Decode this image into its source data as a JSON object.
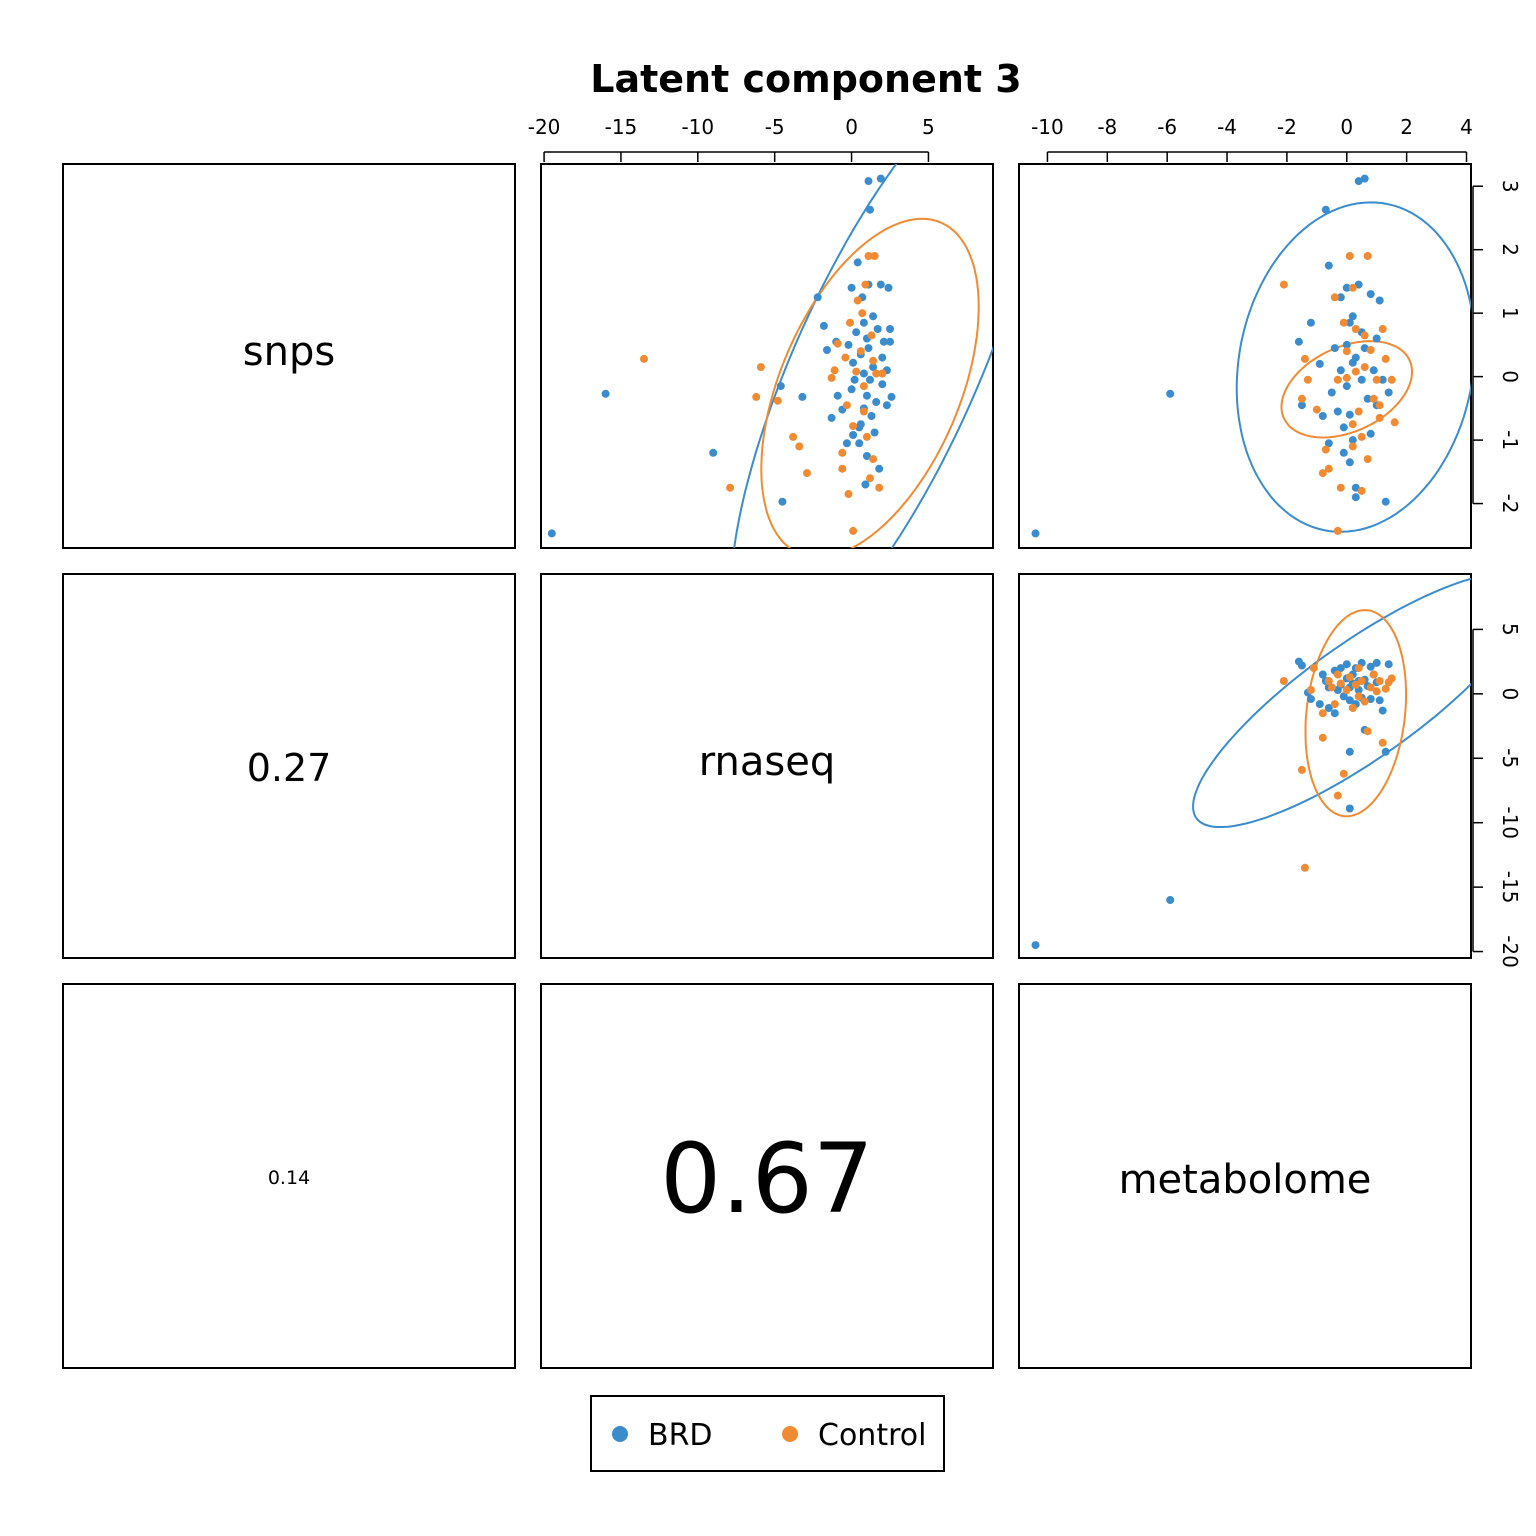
{
  "chart_data": {
    "type": "scatter",
    "title": "Latent component 3",
    "variables": [
      "snps",
      "rnaseq",
      "metabolome"
    ],
    "colors": {
      "BRD": "#3a8ccd",
      "Control": "#f08b33"
    },
    "legend": {
      "entries": [
        "BRD",
        "Control"
      ],
      "placement": "bottom-center"
    },
    "correlations": [
      {
        "row": 1,
        "col": 0,
        "pair": [
          "snps",
          "rnaseq"
        ],
        "value": "0.27"
      },
      {
        "row": 2,
        "col": 0,
        "pair": [
          "snps",
          "metabolome"
        ],
        "value": "0.14"
      },
      {
        "row": 2,
        "col": 1,
        "pair": [
          "rnaseq",
          "metabolome"
        ],
        "value": "0.67"
      }
    ],
    "axes": {
      "top_rnaseq": {
        "ticks": [
          -20,
          -15,
          -10,
          -5,
          0,
          5
        ],
        "range": [
          -20.2,
          9.2
        ]
      },
      "top_metabolome": {
        "ticks": [
          -10,
          -8,
          -6,
          -4,
          -2,
          0,
          2,
          4
        ],
        "range": [
          -10.95,
          4.15
        ]
      },
      "right_snps": {
        "ticks": [
          -2,
          -1,
          0,
          1,
          2,
          3
        ],
        "range": [
          -2.7,
          3.35
        ]
      },
      "right_rnaseq": {
        "ticks": [
          -20,
          -15,
          -10,
          -5,
          0,
          5
        ],
        "range": [
          -20.5,
          9.3
        ]
      }
    },
    "panels": [
      {
        "row": 0,
        "col": 1,
        "x_var": "rnaseq",
        "y_var": "snps",
        "BRD": [
          [
            -19.5,
            -2.47
          ],
          [
            -16,
            -0.27
          ],
          [
            -9,
            -1.2
          ],
          [
            -4.6,
            -0.15
          ],
          [
            -4.5,
            -1.97
          ],
          [
            -3.2,
            -0.32
          ],
          [
            -2.2,
            1.25
          ],
          [
            -1.8,
            0.8
          ],
          [
            -1.6,
            0.42
          ],
          [
            -1.3,
            -0.65
          ],
          [
            -1,
            0.55
          ],
          [
            -0.9,
            -0.3
          ],
          [
            -0.6,
            -0.52
          ],
          [
            -0.3,
            -1.05
          ],
          [
            -0.2,
            0.5
          ],
          [
            0,
            1.4
          ],
          [
            0,
            -0.2
          ],
          [
            0.1,
            0.22
          ],
          [
            0.1,
            -0.92
          ],
          [
            0.2,
            -0.05
          ],
          [
            0.3,
            0.7
          ],
          [
            0.4,
            1.8
          ],
          [
            0.5,
            -0.8
          ],
          [
            0.5,
            -1.05
          ],
          [
            0.6,
            0.35
          ],
          [
            0.6,
            -0.75
          ],
          [
            0.7,
            1.25
          ],
          [
            0.8,
            0.85
          ],
          [
            0.8,
            0.05
          ],
          [
            0.8,
            -0.5
          ],
          [
            0.9,
            -1.7
          ],
          [
            1,
            0.6
          ],
          [
            1,
            -0.3
          ],
          [
            1,
            -1.25
          ],
          [
            1.1,
            3.08
          ],
          [
            1.1,
            1.45
          ],
          [
            1.1,
            0.45
          ],
          [
            1.2,
            2.63
          ],
          [
            1.2,
            -0.05
          ],
          [
            1.3,
            -0.62
          ],
          [
            1.4,
            0.95
          ],
          [
            1.4,
            0.15
          ],
          [
            1.5,
            -0.88
          ],
          [
            1.6,
            -0.4
          ],
          [
            1.7,
            0.75
          ],
          [
            1.8,
            -1.45
          ],
          [
            1.9,
            3.12
          ],
          [
            1.9,
            1.45
          ],
          [
            2,
            0.3
          ],
          [
            2,
            -0.12
          ],
          [
            2.1,
            0.55
          ],
          [
            2.3,
            0.1
          ],
          [
            2.3,
            -0.45
          ],
          [
            2.4,
            1.4
          ],
          [
            2.5,
            0.75
          ],
          [
            2.5,
            0.55
          ],
          [
            2.6,
            -0.32
          ]
        ],
        "Control": [
          [
            -13.5,
            0.28
          ],
          [
            -7.9,
            -1.75
          ],
          [
            -6.2,
            -0.32
          ],
          [
            -5.9,
            0.15
          ],
          [
            -4.8,
            -0.38
          ],
          [
            -3.8,
            -0.95
          ],
          [
            -3.4,
            -1.1
          ],
          [
            -2.9,
            -1.52
          ],
          [
            -1.3,
            -0.02
          ],
          [
            -1.1,
            0.1
          ],
          [
            -0.9,
            0.52
          ],
          [
            -0.6,
            -1.2
          ],
          [
            -0.6,
            -1.45
          ],
          [
            -0.4,
            0.3
          ],
          [
            -0.3,
            -0.45
          ],
          [
            -0.2,
            -1.85
          ],
          [
            -0.1,
            0.85
          ],
          [
            0.1,
            -0.78
          ],
          [
            0.1,
            -2.43
          ],
          [
            0.3,
            0.08
          ],
          [
            0.4,
            1.2
          ],
          [
            0.6,
            0.4
          ],
          [
            0.7,
            1.0
          ],
          [
            0.8,
            -0.15
          ],
          [
            0.8,
            -0.55
          ],
          [
            0.9,
            1.45
          ],
          [
            1,
            -0.95
          ],
          [
            1.1,
            1.9
          ],
          [
            1.2,
            -1.6
          ],
          [
            1.3,
            0.65
          ],
          [
            1.4,
            0.25
          ],
          [
            1.4,
            -1.3
          ],
          [
            1.5,
            1.9
          ],
          [
            1.6,
            0.05
          ],
          [
            1.8,
            -1.75
          ],
          [
            2,
            0.05
          ]
        ],
        "ellipses": {
          "BRD": {
            "center": [
              2.2,
              0.13
            ],
            "dir": [
              0.935,
              0.355
            ],
            "semi_axes": [
              10.7,
              2.8
            ]
          },
          "Control": {
            "center": [
              1.2,
              -0.18
            ],
            "dir": [
              0.98,
              0.198
            ],
            "semi_axes": [
              7.2,
              2.3
            ]
          }
        }
      },
      {
        "row": 0,
        "col": 2,
        "x_var": "metabolome",
        "y_var": "snps",
        "BRD": [
          [
            -10.4,
            -2.47
          ],
          [
            -5.9,
            -0.27
          ],
          [
            -1.6,
            0.55
          ],
          [
            -1.5,
            -0.45
          ],
          [
            -1.2,
            0.85
          ],
          [
            -0.9,
            0.2
          ],
          [
            -0.8,
            -0.62
          ],
          [
            -0.7,
            2.63
          ],
          [
            -0.6,
            1.75
          ],
          [
            -0.6,
            -1.05
          ],
          [
            -0.5,
            -0.25
          ],
          [
            -0.4,
            0.45
          ],
          [
            -0.3,
            -0.55
          ],
          [
            -0.2,
            1.25
          ],
          [
            -0.2,
            0.1
          ],
          [
            -0.1,
            -0.8
          ],
          [
            -0.1,
            -1.2
          ],
          [
            0,
            1.4
          ],
          [
            0,
            0.5
          ],
          [
            0,
            -0.15
          ],
          [
            0.1,
            0.85
          ],
          [
            0.1,
            -1.35
          ],
          [
            0.1,
            -0.6
          ],
          [
            0.2,
            0.22
          ],
          [
            0.2,
            0.95
          ],
          [
            0.2,
            -1.0
          ],
          [
            0.3,
            0.3
          ],
          [
            0.3,
            -1.75
          ],
          [
            0.3,
            -1.9
          ],
          [
            0.4,
            1.45
          ],
          [
            0.4,
            3.08
          ],
          [
            0.5,
            0.7
          ],
          [
            0.5,
            -0.05
          ],
          [
            0.6,
            3.12
          ],
          [
            0.6,
            0.45
          ],
          [
            0.7,
            -0.35
          ],
          [
            0.8,
            1.3
          ],
          [
            0.8,
            -0.9
          ],
          [
            0.9,
            0.1
          ],
          [
            1,
            0.6
          ],
          [
            1,
            -0.45
          ],
          [
            1.1,
            1.2
          ],
          [
            1.2,
            -0.05
          ],
          [
            1.3,
            -1.97
          ],
          [
            1.4,
            -0.25
          ]
        ],
        "Control": [
          [
            -2.1,
            1.45
          ],
          [
            -1.5,
            -0.35
          ],
          [
            -1.4,
            0.28
          ],
          [
            -1.3,
            -0.05
          ],
          [
            -1.0,
            -0.52
          ],
          [
            -0.8,
            -1.52
          ],
          [
            -0.7,
            -1.15
          ],
          [
            -0.6,
            -1.45
          ],
          [
            -0.4,
            1.25
          ],
          [
            -0.3,
            -0.05
          ],
          [
            -0.3,
            -2.43
          ],
          [
            -0.2,
            -1.75
          ],
          [
            -0.1,
            0.85
          ],
          [
            0,
            0.4
          ],
          [
            0,
            -0.02
          ],
          [
            0.1,
            1.9
          ],
          [
            0.2,
            -0.75
          ],
          [
            0.2,
            -1.1
          ],
          [
            0.2,
            1.4
          ],
          [
            0.3,
            0.75
          ],
          [
            0.3,
            0.08
          ],
          [
            0.4,
            -0.55
          ],
          [
            0.5,
            -0.95
          ],
          [
            0.5,
            -1.8
          ],
          [
            0.6,
            0.15
          ],
          [
            0.6,
            0.65
          ],
          [
            0.7,
            1.9
          ],
          [
            0.7,
            -1.3
          ],
          [
            0.8,
            0.42
          ],
          [
            0.9,
            -0.35
          ],
          [
            1,
            -0.05
          ],
          [
            1.1,
            -0.65
          ],
          [
            1.1,
            -0.45
          ],
          [
            1.2,
            0.75
          ],
          [
            1.3,
            0.28
          ],
          [
            1.5,
            -0.05
          ],
          [
            1.6,
            -0.72
          ]
        ],
        "ellipses": {
          "BRD": {
            "center": [
              0.3,
              0.15
            ],
            "dir": [
              0.99,
              0.14
            ],
            "semi_axes": [
              4.0,
              2.56
            ]
          },
          "Control": {
            "center": [
              0,
              -0.2
            ],
            "dir": [
              0.99,
              0.14
            ],
            "semi_axes": [
              2.2,
              0.7
            ]
          }
        }
      },
      {
        "row": 1,
        "col": 2,
        "x_var": "metabolome",
        "y_var": "rnaseq",
        "BRD": [
          [
            -10.4,
            -19.5
          ],
          [
            -5.9,
            -16
          ],
          [
            -1.6,
            2.5
          ],
          [
            -1.5,
            2.2
          ],
          [
            -1.3,
            0.1
          ],
          [
            -1.2,
            -0.4
          ],
          [
            -0.9,
            -0.8
          ],
          [
            -0.8,
            1.5
          ],
          [
            -0.7,
            1.0
          ],
          [
            -0.6,
            0.5
          ],
          [
            -0.6,
            -1.1
          ],
          [
            -0.4,
            -1.5
          ],
          [
            -0.4,
            1.8
          ],
          [
            -0.3,
            0.3
          ],
          [
            -0.2,
            2.0
          ],
          [
            -0.2,
            0.7
          ],
          [
            -0.1,
            -0.2
          ],
          [
            0,
            1.2
          ],
          [
            0,
            2.3
          ],
          [
            0.1,
            0.5
          ],
          [
            0.1,
            -0.5
          ],
          [
            0.1,
            -4.5
          ],
          [
            0.1,
            -8.9
          ],
          [
            0.2,
            1.5
          ],
          [
            0.2,
            0.8
          ],
          [
            0.3,
            -0.8
          ],
          [
            0.3,
            2.0
          ],
          [
            0.4,
            0.3
          ],
          [
            0.4,
            1.0
          ],
          [
            0.5,
            2.4
          ],
          [
            0.5,
            -0.3
          ],
          [
            0.6,
            1.1
          ],
          [
            0.6,
            -2.8
          ],
          [
            0.7,
            0.6
          ],
          [
            0.8,
            2.1
          ],
          [
            0.8,
            -0.4
          ],
          [
            0.9,
            1.5
          ],
          [
            1,
            2.4
          ],
          [
            1,
            0.9
          ],
          [
            1.1,
            -0.5
          ],
          [
            1.2,
            -1.3
          ],
          [
            1.3,
            -4.5
          ],
          [
            1.4,
            2.3
          ]
        ],
        "Control": [
          [
            -2.1,
            1.0
          ],
          [
            -1.5,
            -5.9
          ],
          [
            -1.4,
            -13.5
          ],
          [
            -1.2,
            0.3
          ],
          [
            -1.1,
            2.0
          ],
          [
            -0.8,
            -1.5
          ],
          [
            -0.8,
            -3.4
          ],
          [
            -0.6,
            1.0
          ],
          [
            -0.5,
            0.5
          ],
          [
            -0.4,
            -0.8
          ],
          [
            -0.3,
            1.5
          ],
          [
            -0.3,
            -7.9
          ],
          [
            -0.2,
            0.8
          ],
          [
            -0.1,
            -6.2
          ],
          [
            0,
            0.3
          ],
          [
            0.1,
            1.3
          ],
          [
            0.2,
            -1.1
          ],
          [
            0.3,
            0.7
          ],
          [
            0.4,
            2.0
          ],
          [
            0.4,
            -0.2
          ],
          [
            0.5,
            1.0
          ],
          [
            0.6,
            -0.6
          ],
          [
            0.7,
            -2.9
          ],
          [
            0.8,
            0.5
          ],
          [
            0.9,
            1.5
          ],
          [
            1,
            0.2
          ],
          [
            1.1,
            1.0
          ],
          [
            1.2,
            -3.8
          ],
          [
            1.3,
            0.4
          ],
          [
            1.4,
            0.9
          ],
          [
            1.5,
            1.2
          ]
        ],
        "ellipses": {
          "BRD": {
            "center": [
              0.5,
              -0.5
            ],
            "dir": [
              0.462,
              0.887
            ],
            "semi_axes": [
              11.0,
              2.75
            ]
          },
          "Control": {
            "center": [
              0.3,
              -1.5
            ],
            "dir": [
              0.04,
              1.0
            ],
            "semi_axes": [
              8.0,
              1.65
            ]
          }
        }
      }
    ]
  }
}
